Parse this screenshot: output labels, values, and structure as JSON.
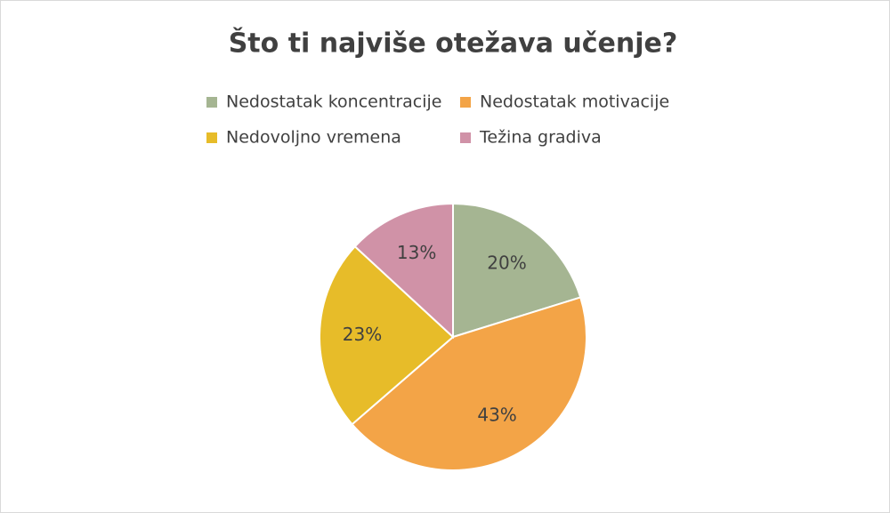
{
  "chart_data": {
    "type": "pie",
    "title": "Što ti najviše otežava učenje?",
    "categories": [
      "Nedostatak koncentracije",
      "Nedostatak motivacije",
      "Nedovoljno vremena",
      "Težina gradiva"
    ],
    "values": [
      20,
      43,
      23,
      13
    ],
    "value_labels": [
      "20%",
      "43%",
      "23%",
      "13%"
    ],
    "colors": [
      "#a5b592",
      "#f3a447",
      "#e7bc29",
      "#d092a7"
    ],
    "legend": "top"
  }
}
